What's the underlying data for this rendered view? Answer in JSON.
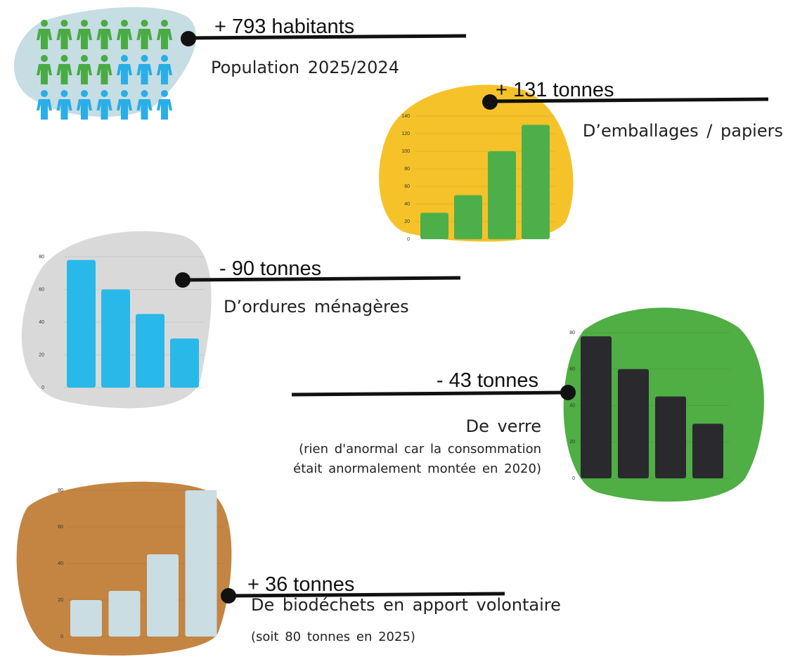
{
  "items": [
    {
      "headline": "+ 793 habitants",
      "caption": "Population 2025/2024"
    },
    {
      "headline": "+ 131 tonnes",
      "caption": "D’emballages / papiers",
      "chart": {
        "type": "bar",
        "values": [
          30,
          50,
          100,
          130
        ],
        "ylim": [
          0,
          140
        ],
        "yticks": [
          0,
          20,
          40,
          60,
          80,
          100,
          120,
          140
        ],
        "color": "#4caf4a"
      }
    },
    {
      "headline": "- 90 tonnes",
      "caption": "D’ordures ménagères",
      "chart": {
        "type": "bar",
        "values": [
          78,
          60,
          45,
          30
        ],
        "ylim": [
          0,
          80
        ],
        "yticks": [
          0,
          20,
          40,
          60,
          80
        ],
        "color": "#29b8ea"
      }
    },
    {
      "headline": "- 43 tonnes",
      "caption": "De verre",
      "note": [
        "(rien d'anormal car la consommation",
        "était anormalement montée en 2020)"
      ],
      "chart": {
        "type": "bar",
        "values": [
          78,
          60,
          45,
          30
        ],
        "ylim": [
          0,
          80
        ],
        "yticks": [
          0,
          20,
          40,
          60,
          80
        ],
        "color": "#2a2a2e"
      }
    },
    {
      "headline": "+ 36 tonnes",
      "caption": "De biodéchets en apport volontaire",
      "note": [
        "(soit 80 tonnes en 2025)"
      ],
      "chart": {
        "type": "bar",
        "values": [
          20,
          25,
          45,
          80
        ],
        "ylim": [
          0,
          80
        ],
        "yticks": [
          0,
          20,
          40,
          60,
          80
        ],
        "color": "#c9dde3"
      }
    }
  ]
}
